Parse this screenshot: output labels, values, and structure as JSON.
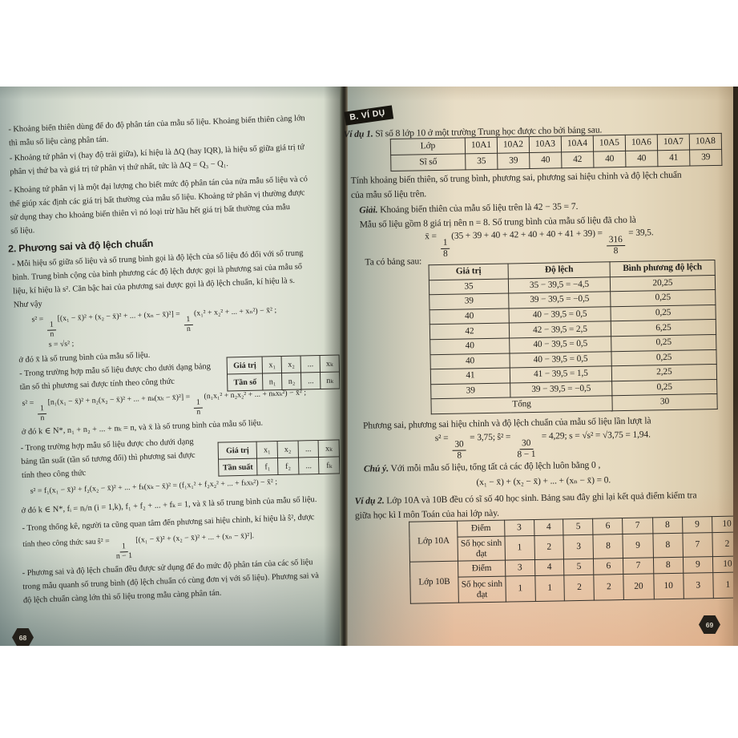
{
  "colors": {
    "badge_bg": "#17150f",
    "page_left": "#e2e5da",
    "page_right": "#eadfc8",
    "ink": "#211f1c"
  },
  "left_page": {
    "page_number": "68",
    "p1": [
      "- Khoảng biến thiên dùng để đo độ phân tán của mẫu số liệu. Khoảng biến thiên càng lớn",
      "thì mẫu số liệu càng phân tán."
    ],
    "p2": [
      "- Khoảng tứ phân vị (hay độ trải giữa), kí hiệu là ΔQ (hay IQR), là hiệu số giữa giá trị tứ",
      "phân vị thứ ba và giá trị tứ phân vị thứ nhất, tức là ΔQ = Q₃ − Q₁."
    ],
    "p3": [
      "- Khoảng tứ phân vị là một đại lượng cho biết mức độ phân tán của nửa mẫu số liệu và có",
      "thể giúp xác định các giá trị bất thường của mẫu số liệu. Khoảng tứ phân vị thường được",
      "sử dụng thay cho khoảng biến thiên vì nó loại trừ hầu hết giá trị bất thường của mẫu",
      "số liệu."
    ],
    "section2_title": "2. Phương sai và độ lệch chuẩn",
    "p4": [
      "- Mỗi hiệu số giữa số liệu và số trung bình gọi là độ lệch của số liệu đó đối với số trung",
      "bình. Trung bình cộng của bình phương các độ lệch được gọi là phương sai của mẫu số",
      "liệu, kí hiệu là s². Căn bậc hai của phương sai được gọi là độ lệch chuẩn, kí hiệu là s.",
      "Như vậy"
    ],
    "f_var": {
      "a": "s² = ",
      "n1": "1",
      "d1": "n",
      "b": "[(x₁ − x̄)² + (x₂ − x̄)² + ... + (xₙ − x̄)²] = ",
      "n2": "1",
      "d2": "n",
      "c": "(x₁² + x₂² + ... + xₙ²) − x̄² ;"
    },
    "f_sd": "s = √s² ;",
    "where_mean": "ở đó x̄ là số trung bình của mẫu số liệu.",
    "p5": [
      "- Trong trường hợp mẫu số liệu được cho dưới dạng bảng",
      "tần số thì phương sai được tính theo công thức"
    ],
    "freq_table": {
      "r1": [
        "Giá trị",
        "x₁",
        "x₂",
        "...",
        "xₖ"
      ],
      "r2": [
        "Tần số",
        "n₁",
        "n₂",
        "...",
        "nₖ"
      ]
    },
    "f_var_freq": {
      "a": "s² = ",
      "n1": "1",
      "d1": "n",
      "b": "[n₁(x₁ − x̄)² + n₂(x₂ − x̄)² + ... + nₖ(xₖ − x̄)²] = ",
      "n2": "1",
      "d2": "n",
      "c": "(n₁x₁² + n₂x₂² + ... + nₖxₖ²) − x̄² ;"
    },
    "where_freq": "ở đó k ∈ N*, n₁ + n₂ + ... + nₖ = n, và x̄ là số trung bình của mẫu số liệu.",
    "p6": [
      "- Trong trường hợp mẫu số liệu được cho dưới dạng",
      "bảng tần suất (tần số tương đối) thì phương sai được",
      "tính theo công thức"
    ],
    "rel_freq_table": {
      "r1": [
        "Giá trị",
        "x₁",
        "x₂",
        "...",
        "xₖ"
      ],
      "r2": [
        "Tần suất",
        "f₁",
        "f₂",
        "...",
        "fₖ"
      ]
    },
    "f_var_rel": "s² = f₁(x₁ − x̄)² + f₂(x₂ − x̄)² + ... + fₖ(xₖ − x̄)² = (f₁x₁² + f₂x₂² + ... + fₖxₖ²) − x̄² ;",
    "where_rel": "ở đó k ∈ N*, fᵢ = nᵢ/n (i = 1,k), f₁ + f₂ + ... + fₖ = 1, và x̄ là số trung bình của mẫu số liệu.",
    "p8l1": "- Trong thống kê, người ta cũng quan tâm đến phương sai hiệu chỉnh, kí hiệu là ŝ², được",
    "f_adj": {
      "a": "tính theo công thức sau   ŝ² = ",
      "n1": "1",
      "d1": "n − 1",
      "b": "[(x₁ − x̄)² + (x₂ − x̄)² + ... + (xₙ − x̄)²]."
    },
    "p9": [
      "- Phương sai và độ lệch chuẩn đều được sử dụng để đo mức độ phân tán của các số liệu",
      "trong mẫu quanh số trung bình (độ lệch chuẩn có cùng đơn vị với số liệu). Phương sai và",
      "độ lệch chuẩn càng lớn thì số liệu trong mẫu càng phân tán."
    ]
  },
  "right_page": {
    "page_number": "69",
    "section_badge": "B. VÍ DỤ",
    "ex1_label": "Ví dụ 1.",
    "ex1_text": " Sĩ số 8 lớp 10 ở một trường Trung học được cho bởi bảng sau.",
    "table1": {
      "header": [
        "Lớp",
        "10A1",
        "10A2",
        "10A3",
        "10A4",
        "10A5",
        "10A6",
        "10A7",
        "10A8"
      ],
      "values": [
        "Sĩ số",
        "35",
        "39",
        "40",
        "42",
        "40",
        "40",
        "41",
        "39"
      ]
    },
    "task": [
      "Tính khoảng biến thiên, số trung bình, phương sai, phương sai hiệu chỉnh và độ lệch chuẩn",
      "của mẫu số liệu trên."
    ],
    "giai_label": "Giải.",
    "giai_text": " Khoảng biến thiên của mẫu số liệu trên là 42 − 35 = 7.",
    "mean_sentence": "Mẫu số liệu gồm 8 giá trị nên n = 8. Số trung bình của mẫu số liệu đã cho là",
    "f_mean": {
      "a": "x̄ = ",
      "n1": "1",
      "d1": "8",
      "b": "(35 + 39 + 40 + 42 + 40 + 40 + 41 + 39) = ",
      "n2": "316",
      "d2": "8",
      "c": " = 39,5."
    },
    "ta_co": "Ta có bảng sau:",
    "table2": {
      "header": [
        "Giá trị",
        "Độ lệch",
        "Bình phương độ lệch"
      ],
      "rows": [
        [
          "35",
          "35 − 39,5 = −4,5",
          "20,25"
        ],
        [
          "39",
          "39 − 39,5 = −0,5",
          "0,25"
        ],
        [
          "40",
          "40 − 39,5 = 0,5",
          "0,25"
        ],
        [
          "42",
          "42 − 39,5 = 2,5",
          "6,25"
        ],
        [
          "40",
          "40 − 39,5 = 0,5",
          "0,25"
        ],
        [
          "40",
          "40 − 39,5 = 0,5",
          "0,25"
        ],
        [
          "41",
          "41 − 39,5 = 1,5",
          "2,25"
        ],
        [
          "39",
          "39 − 39,5 = −0,5",
          "0,25"
        ]
      ],
      "total_label": "Tổng",
      "total_value": "30"
    },
    "resume": "Phương sai, phương sai hiệu chỉnh và độ lệch chuẩn của mẫu số liệu lần lượt là",
    "f_var": {
      "a": "s² = ",
      "n1": "30",
      "d1": "8",
      "b": " = 3,75;   ŝ² = ",
      "n2": "30",
      "d2": "8 − 1",
      "c": " = 4,29;   s = √s² = √3,75 = 1,94."
    },
    "note_label": "Chú ý.",
    "note_text": " Với mỗi mẫu số liệu, tổng tất cả các độ lệch luôn bằng 0 ,",
    "f_zero": "(x₁ − x̄) + (x₂ − x̄) + ... + (xₙ − x̄) = 0.",
    "ex2_label": "Ví dụ 2.",
    "ex2_text": " Lớp 10A và 10B đều có sĩ số 40 học sinh. Bảng sau đây ghi lại kết quả điểm kiểm tra",
    "ex2_line2": "giữa học kì I môn Toán của hai lớp này.",
    "table3": {
      "row_label_a": "Lớp 10A",
      "row_label_b": "Lớp 10B",
      "diem_label": "Điểm",
      "count_label": "Số học sinh đạt",
      "scores": [
        "3",
        "4",
        "5",
        "6",
        "7",
        "8",
        "9",
        "10"
      ],
      "counts_a": [
        "1",
        "2",
        "3",
        "8",
        "9",
        "8",
        "7",
        "2"
      ],
      "counts_b": [
        "1",
        "1",
        "2",
        "2",
        "20",
        "10",
        "3",
        "1"
      ]
    }
  }
}
